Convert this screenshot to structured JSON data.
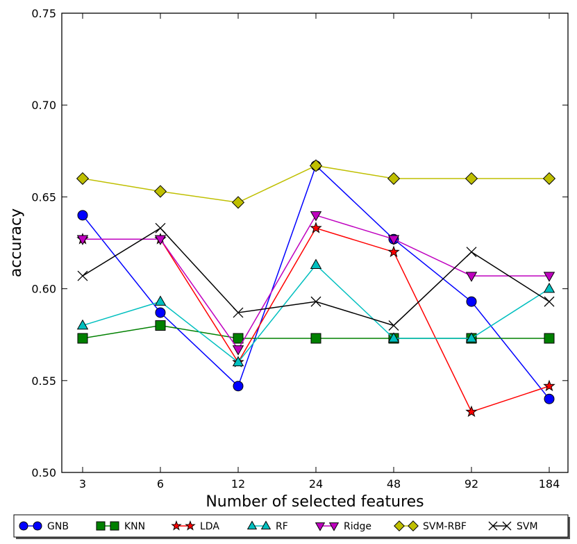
{
  "chart_data": {
    "type": "line",
    "title": "",
    "xlabel": "Number of selected features",
    "ylabel": "accuracy",
    "categories": [
      "3",
      "6",
      "12",
      "24",
      "48",
      "92",
      "184"
    ],
    "ylim": [
      0.5,
      0.75
    ],
    "yticks": [
      "0.50",
      "0.55",
      "0.60",
      "0.65",
      "0.70",
      "0.75"
    ],
    "grid": false,
    "legend_position": "bottom",
    "series": [
      {
        "name": "GNB",
        "color": "#0000ff",
        "marker": "circle",
        "values": [
          0.64,
          0.587,
          0.547,
          0.667,
          0.627,
          0.593,
          0.54
        ]
      },
      {
        "name": "KNN",
        "color": "#008000",
        "marker": "square",
        "values": [
          0.573,
          0.58,
          0.573,
          0.573,
          0.573,
          0.573,
          0.573
        ]
      },
      {
        "name": "LDA",
        "color": "#ff0000",
        "marker": "star",
        "values": [
          0.627,
          0.627,
          0.56,
          0.633,
          0.62,
          0.533,
          0.547
        ]
      },
      {
        "name": "RF",
        "color": "#00bfbf",
        "marker": "triangle-up",
        "values": [
          0.58,
          0.593,
          0.56,
          0.613,
          0.573,
          0.573,
          0.6
        ]
      },
      {
        "name": "Ridge",
        "color": "#bf00bf",
        "marker": "triangle-down",
        "values": [
          0.627,
          0.627,
          0.567,
          0.64,
          0.627,
          0.607,
          0.607
        ]
      },
      {
        "name": "SVM-RBF",
        "color": "#bfbf00",
        "marker": "diamond",
        "values": [
          0.66,
          0.653,
          0.647,
          0.667,
          0.66,
          0.66,
          0.66
        ]
      },
      {
        "name": "SVM",
        "color": "#000000",
        "marker": "x",
        "values": [
          0.607,
          0.633,
          0.587,
          0.593,
          0.58,
          0.62,
          0.593
        ]
      }
    ]
  }
}
